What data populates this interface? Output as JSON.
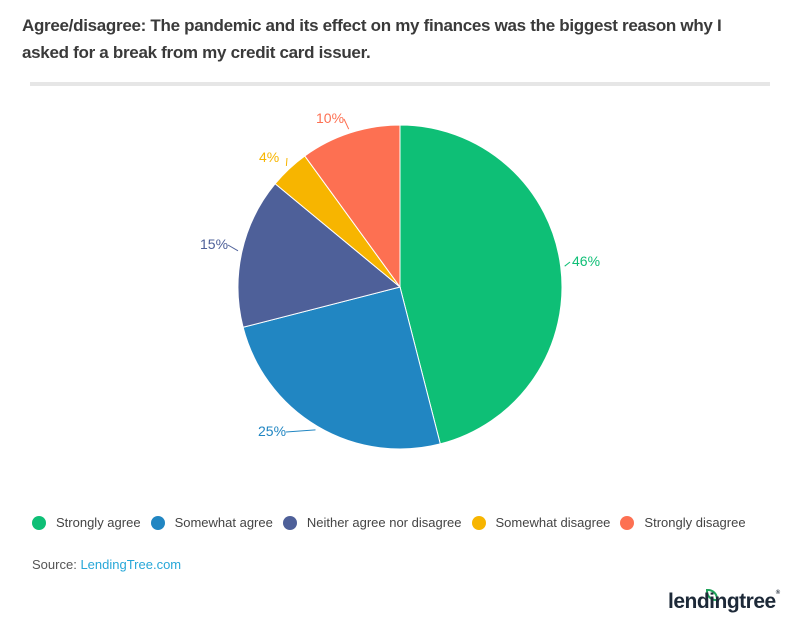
{
  "title": "Agree/disagree: The pandemic and its effect on my finances was the biggest reason why I asked for a break from my credit card issuer.",
  "chart_data": {
    "type": "pie",
    "title": "Agree/disagree: The pandemic and its effect on my finances was the biggest reason why I asked for a break from my credit card issuer.",
    "categories": [
      "Strongly agree",
      "Somewhat agree",
      "Neither agree nor disagree",
      "Somewhat disagree",
      "Strongly disagree"
    ],
    "values": [
      46,
      25,
      15,
      4,
      10
    ],
    "labels": [
      "46%",
      "25%",
      "15%",
      "4%",
      "10%"
    ],
    "colors": [
      "#0ebf76",
      "#2186c2",
      "#4e6099",
      "#f7b500",
      "#fd7052"
    ],
    "legend_position": "bottom",
    "start_angle": "12 o'clock, clockwise"
  },
  "legend": [
    {
      "label": "Strongly agree",
      "color": "#0ebf76"
    },
    {
      "label": "Somewhat agree",
      "color": "#2186c2"
    },
    {
      "label": "Neither agree nor disagree",
      "color": "#4e6099"
    },
    {
      "label": "Somewhat disagree",
      "color": "#f7b500"
    },
    {
      "label": "Strongly disagree",
      "color": "#fd7052"
    }
  ],
  "source": {
    "prefix": "Source:",
    "link": "LendingTree.com"
  },
  "logo": {
    "text": "lendingtree"
  }
}
